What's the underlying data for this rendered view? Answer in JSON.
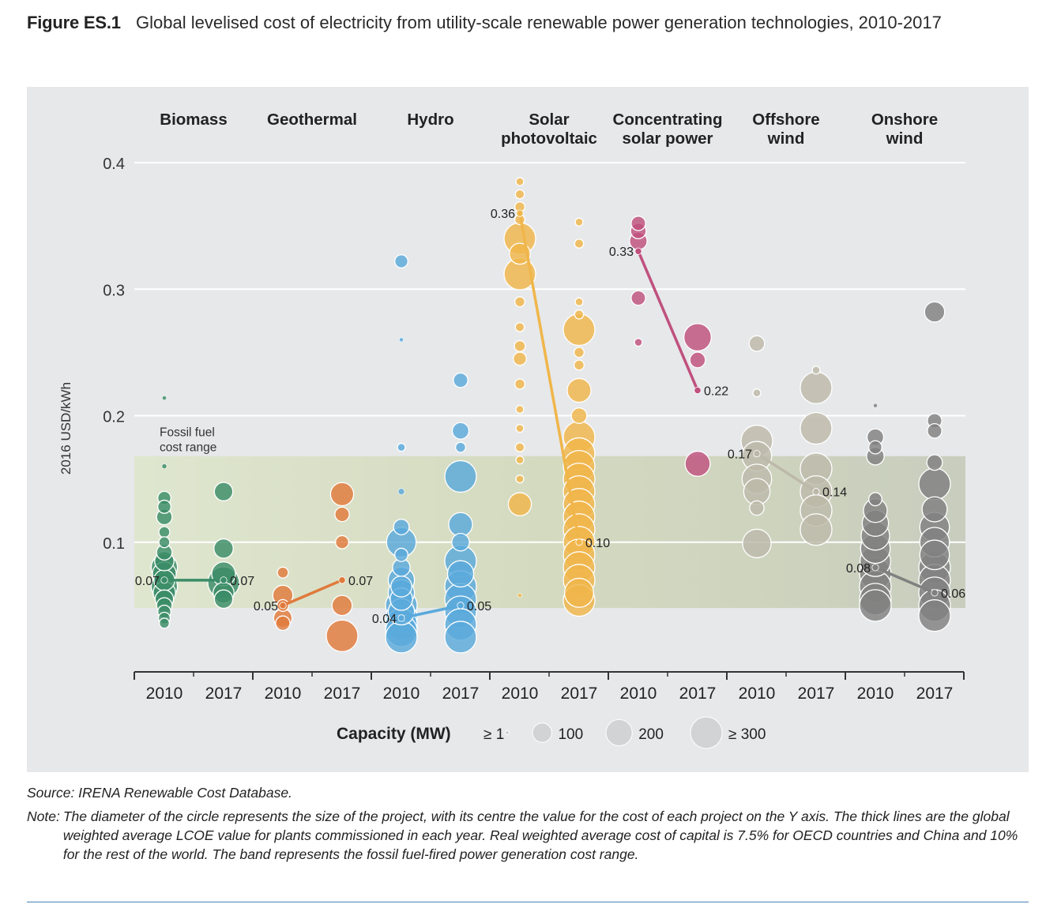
{
  "figure": {
    "label": "Figure ES.1",
    "title": "Global levelised cost of electricity from utility-scale renewable power generation technologies, 2010-2017"
  },
  "notes": {
    "source": "Source: IRENA Renewable Cost Database.",
    "note_key": "Note:",
    "note_text": "The diameter of the circle represents the size of the project, with its centre the value for the cost of each project on the Y axis. The thick lines are the global weighted average LCOE value for plants commissioned in each year. Real weighted average cost of capital is 7.5% for OECD countries and China and 10% for the rest of the world. The band represents the fossil fuel-fired power generation cost range."
  },
  "chart_data": {
    "type": "scatter",
    "ylabel": "2016 USD/kWh",
    "ylim": [
      0,
      0.4
    ],
    "yticks": [
      0.1,
      0.2,
      0.3,
      0.4
    ],
    "ytick_labels": [
      "0.1",
      "0.2",
      "0.3",
      "0.4"
    ],
    "grid": true,
    "band": {
      "label": "Fossil fuel cost range",
      "label_lines": [
        "Fossil fuel",
        "cost range"
      ],
      "y0": 0.048,
      "y1": 0.168
    },
    "year_labels": [
      "2010",
      "2017"
    ],
    "legend": {
      "title": "Capacity (MW)",
      "entries": [
        "≥ 1",
        "100",
        "200",
        "≥ 300"
      ],
      "placement": "bottom"
    },
    "technologies": [
      {
        "name": "Biomass",
        "name_lines": [
          "Biomass"
        ],
        "color": "#3a8c67",
        "averages": [
          {
            "year": "2010",
            "value": 0.07,
            "label": "0.07"
          },
          {
            "year": "2017",
            "value": 0.07,
            "label": "0.07"
          }
        ],
        "points": {
          "2010": [
            [
              0.214,
              1
            ],
            [
              0.16,
              2
            ],
            [
              0.135,
              40
            ],
            [
              0.128,
              40
            ],
            [
              0.12,
              60
            ],
            [
              0.108,
              25
            ],
            [
              0.1,
              25
            ],
            [
              0.092,
              60
            ],
            [
              0.085,
              100
            ],
            [
              0.08,
              200
            ],
            [
              0.075,
              160
            ],
            [
              0.07,
              120
            ],
            [
              0.065,
              200
            ],
            [
              0.06,
              140
            ],
            [
              0.055,
              90
            ],
            [
              0.05,
              60
            ],
            [
              0.045,
              40
            ],
            [
              0.04,
              30
            ],
            [
              0.036,
              20
            ]
          ],
          "2017": [
            [
              0.14,
              90
            ],
            [
              0.095,
              100
            ],
            [
              0.075,
              160
            ],
            [
              0.068,
              300
            ],
            [
              0.06,
              120
            ],
            [
              0.055,
              90
            ]
          ]
        }
      },
      {
        "name": "Geothermal",
        "name_lines": [
          "Geothermal"
        ],
        "color": "#e07a3c",
        "averages": [
          {
            "year": "2010",
            "value": 0.05,
            "label": "0.05"
          },
          {
            "year": "2017",
            "value": 0.07,
            "label": "0.07"
          }
        ],
        "points": {
          "2010": [
            [
              0.076,
              25
            ],
            [
              0.058,
              110
            ],
            [
              0.05,
              30
            ],
            [
              0.04,
              90
            ],
            [
              0.036,
              50
            ]
          ],
          "2017": [
            [
              0.138,
              150
            ],
            [
              0.122,
              50
            ],
            [
              0.1,
              40
            ],
            [
              0.05,
              110
            ],
            [
              0.026,
              300
            ]
          ]
        }
      },
      {
        "name": "Hydro",
        "name_lines": [
          "Hydro"
        ],
        "color": "#5aa9dc",
        "averages": [
          {
            "year": "2010",
            "value": 0.04,
            "label": "0.04"
          },
          {
            "year": "2017",
            "value": 0.05,
            "label": "0.05"
          }
        ],
        "points": {
          "2010": [
            [
              0.322,
              40
            ],
            [
              0.26,
              1
            ],
            [
              0.175,
              10
            ],
            [
              0.14,
              5
            ],
            [
              0.112,
              60
            ],
            [
              0.1,
              260
            ],
            [
              0.09,
              40
            ],
            [
              0.08,
              80
            ],
            [
              0.07,
              200
            ],
            [
              0.065,
              120
            ],
            [
              0.06,
              200
            ],
            [
              0.055,
              140
            ],
            [
              0.05,
              300
            ],
            [
              0.045,
              200
            ],
            [
              0.04,
              300
            ],
            [
              0.035,
              300
            ],
            [
              0.03,
              300
            ],
            [
              0.025,
              300
            ]
          ],
          "2017": [
            [
              0.228,
              50
            ],
            [
              0.188,
              70
            ],
            [
              0.175,
              20
            ],
            [
              0.152,
              300
            ],
            [
              0.114,
              160
            ],
            [
              0.1,
              80
            ],
            [
              0.085,
              300
            ],
            [
              0.075,
              200
            ],
            [
              0.065,
              300
            ],
            [
              0.055,
              300
            ],
            [
              0.045,
              300
            ],
            [
              0.035,
              300
            ],
            [
              0.025,
              300
            ]
          ]
        }
      },
      {
        "name": "Solar photovoltaic",
        "name_lines": [
          "Solar",
          "photovoltaic"
        ],
        "color": "#f0b64a",
        "averages": [
          {
            "year": "2010",
            "value": 0.36,
            "label": "0.36"
          },
          {
            "year": "2017",
            "value": 0.1,
            "label": "0.10"
          }
        ],
        "points": {
          "2010": [
            [
              0.385,
              10
            ],
            [
              0.375,
              15
            ],
            [
              0.365,
              20
            ],
            [
              0.355,
              20
            ],
            [
              0.34,
              300
            ],
            [
              0.328,
              120
            ],
            [
              0.312,
              300
            ],
            [
              0.29,
              20
            ],
            [
              0.27,
              15
            ],
            [
              0.255,
              25
            ],
            [
              0.245,
              40
            ],
            [
              0.225,
              20
            ],
            [
              0.205,
              10
            ],
            [
              0.19,
              10
            ],
            [
              0.175,
              15
            ],
            [
              0.165,
              10
            ],
            [
              0.15,
              10
            ],
            [
              0.13,
              150
            ],
            [
              0.058,
              1
            ]
          ],
          "2017": [
            [
              0.353,
              10
            ],
            [
              0.336,
              15
            ],
            [
              0.29,
              10
            ],
            [
              0.28,
              15
            ],
            [
              0.268,
              300
            ],
            [
              0.25,
              20
            ],
            [
              0.24,
              20
            ],
            [
              0.22,
              160
            ],
            [
              0.2,
              60
            ],
            [
              0.183,
              300
            ],
            [
              0.17,
              300
            ],
            [
              0.16,
              300
            ],
            [
              0.15,
              300
            ],
            [
              0.14,
              300
            ],
            [
              0.13,
              300
            ],
            [
              0.12,
              300
            ],
            [
              0.11,
              300
            ],
            [
              0.1,
              300
            ],
            [
              0.09,
              300
            ],
            [
              0.08,
              300
            ],
            [
              0.07,
              300
            ],
            [
              0.06,
              250
            ],
            [
              0.054,
              300
            ]
          ]
        }
      },
      {
        "name": "Concentrating solar power",
        "name_lines": [
          "Concentrating",
          "solar power"
        ],
        "color": "#c0507e",
        "averages": [
          {
            "year": "2010",
            "value": 0.33,
            "label": "0.33"
          },
          {
            "year": "2017",
            "value": 0.22,
            "label": "0.22"
          }
        ],
        "points": {
          "2010": [
            [
              0.352,
              50
            ],
            [
              0.346,
              60
            ],
            [
              0.338,
              80
            ],
            [
              0.293,
              50
            ],
            [
              0.258,
              10
            ]
          ],
          "2017": [
            [
              0.262,
              220
            ],
            [
              0.244,
              60
            ],
            [
              0.162,
              180
            ]
          ]
        }
      },
      {
        "name": "Offshore wind",
        "name_lines": [
          "Offshore",
          "wind"
        ],
        "color": "#bdb9aa",
        "averages": [
          {
            "year": "2010",
            "value": 0.17,
            "label": "0.17"
          },
          {
            "year": "2017",
            "value": 0.14,
            "label": "0.14"
          }
        ],
        "points": {
          "2010": [
            [
              0.257,
              60
            ],
            [
              0.218,
              10
            ],
            [
              0.18,
              300
            ],
            [
              0.168,
              260
            ],
            [
              0.15,
              260
            ],
            [
              0.14,
              200
            ],
            [
              0.127,
              50
            ],
            [
              0.099,
              240
            ]
          ],
          "2017": [
            [
              0.236,
              10
            ],
            [
              0.222,
              300
            ],
            [
              0.19,
              300
            ],
            [
              0.158,
              300
            ],
            [
              0.14,
              300
            ],
            [
              0.125,
              300
            ],
            [
              0.11,
              300
            ]
          ]
        }
      },
      {
        "name": "Onshore wind",
        "name_lines": [
          "Onshore",
          "wind"
        ],
        "color": "#808080",
        "averages": [
          {
            "year": "2010",
            "value": 0.08,
            "label": "0.08"
          },
          {
            "year": "2017",
            "value": 0.06,
            "label": "0.06"
          }
        ],
        "points": {
          "2010": [
            [
              0.208,
              1
            ],
            [
              0.183,
              70
            ],
            [
              0.175,
              40
            ],
            [
              0.168,
              80
            ],
            [
              0.134,
              40
            ],
            [
              0.125,
              160
            ],
            [
              0.115,
              200
            ],
            [
              0.105,
              240
            ],
            [
              0.095,
              260
            ],
            [
              0.085,
              280
            ],
            [
              0.075,
              300
            ],
            [
              0.065,
              300
            ],
            [
              0.055,
              300
            ],
            [
              0.05,
              300
            ]
          ],
          "2017": [
            [
              0.282,
              110
            ],
            [
              0.196,
              50
            ],
            [
              0.188,
              50
            ],
            [
              0.163,
              60
            ],
            [
              0.146,
              300
            ],
            [
              0.126,
              180
            ],
            [
              0.112,
              260
            ],
            [
              0.1,
              260
            ],
            [
              0.09,
              260
            ],
            [
              0.08,
              300
            ],
            [
              0.07,
              300
            ],
            [
              0.06,
              300
            ],
            [
              0.05,
              300
            ],
            [
              0.042,
              300
            ]
          ]
        }
      }
    ]
  }
}
